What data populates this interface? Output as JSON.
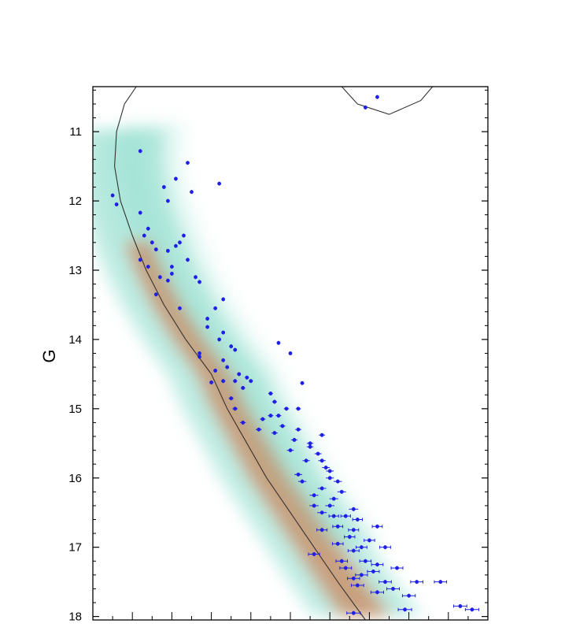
{
  "chart_data": {
    "type": "scatter",
    "title": "",
    "xlabel": "",
    "ylabel": "G",
    "ylim": [
      10.35,
      18.05
    ],
    "xlim": [
      0,
      1
    ],
    "y_inverted": true,
    "y_ticks": [
      11,
      12,
      13,
      14,
      15,
      16,
      17,
      18
    ],
    "grid": false,
    "legend": "none",
    "colors": {
      "points": "#1f1fe6",
      "isochrone": "#333333",
      "density_low": "#6fd3bf",
      "density_high": "#e8561c"
    },
    "series": [
      {
        "type": "line",
        "points": [
          [
            0.11,
            10.35
          ],
          [
            0.08,
            10.6
          ],
          [
            0.06,
            11.0
          ],
          [
            0.055,
            11.5
          ],
          [
            0.07,
            12.0
          ],
          [
            0.1,
            12.5
          ],
          [
            0.135,
            13.0
          ],
          [
            0.18,
            13.5
          ],
          [
            0.235,
            14.0
          ],
          [
            0.3,
            14.5
          ],
          [
            0.34,
            15.0
          ],
          [
            0.39,
            15.5
          ],
          [
            0.44,
            16.0
          ],
          [
            0.5,
            16.5
          ],
          [
            0.56,
            17.0
          ],
          [
            0.62,
            17.5
          ],
          [
            0.69,
            18.05
          ]
        ]
      },
      {
        "type": "line",
        "points": [
          [
            0.63,
            10.35
          ],
          [
            0.67,
            10.6
          ],
          [
            0.75,
            10.75
          ],
          [
            0.83,
            10.55
          ],
          [
            0.86,
            10.35
          ]
        ]
      },
      {
        "type": "scatter",
        "points": [
          [
            0.72,
            10.5
          ],
          [
            0.69,
            10.65
          ],
          [
            0.12,
            11.28
          ],
          [
            0.24,
            11.45
          ],
          [
            0.18,
            11.8
          ],
          [
            0.21,
            11.68
          ],
          [
            0.32,
            11.75
          ],
          [
            0.25,
            11.87
          ],
          [
            0.05,
            11.92
          ],
          [
            0.06,
            12.05
          ],
          [
            0.19,
            12.0
          ],
          [
            0.12,
            12.17
          ],
          [
            0.14,
            12.4
          ],
          [
            0.13,
            12.5
          ],
          [
            0.15,
            12.6
          ],
          [
            0.23,
            12.5
          ],
          [
            0.16,
            12.7
          ],
          [
            0.19,
            12.72
          ],
          [
            0.21,
            12.65
          ],
          [
            0.22,
            12.6
          ],
          [
            0.24,
            12.85
          ],
          [
            0.12,
            12.85
          ],
          [
            0.14,
            12.95
          ],
          [
            0.2,
            12.95
          ],
          [
            0.2,
            13.05
          ],
          [
            0.26,
            13.1
          ],
          [
            0.17,
            13.1
          ],
          [
            0.19,
            13.15
          ],
          [
            0.27,
            13.17
          ],
          [
            0.16,
            13.35
          ],
          [
            0.33,
            13.42
          ],
          [
            0.22,
            13.55
          ],
          [
            0.31,
            13.55
          ],
          [
            0.29,
            13.7
          ],
          [
            0.29,
            13.82
          ],
          [
            0.33,
            13.9
          ],
          [
            0.32,
            14.0
          ],
          [
            0.35,
            14.1
          ],
          [
            0.36,
            14.15
          ],
          [
            0.27,
            14.2
          ],
          [
            0.47,
            14.05
          ],
          [
            0.5,
            14.2
          ],
          [
            0.27,
            14.25
          ],
          [
            0.33,
            14.3
          ],
          [
            0.34,
            14.4
          ],
          [
            0.31,
            14.45
          ],
          [
            0.37,
            14.5
          ],
          [
            0.39,
            14.55
          ],
          [
            0.33,
            14.6
          ],
          [
            0.36,
            14.6
          ],
          [
            0.4,
            14.6
          ],
          [
            0.53,
            14.63
          ],
          [
            0.3,
            14.62
          ],
          [
            0.38,
            14.7
          ],
          [
            0.45,
            14.78
          ],
          [
            0.35,
            14.85
          ],
          [
            0.46,
            14.9
          ],
          [
            0.49,
            15.0
          ],
          [
            0.52,
            15.0
          ],
          [
            0.36,
            15.0
          ],
          [
            0.45,
            15.1
          ],
          [
            0.47,
            15.1
          ],
          [
            0.43,
            15.15
          ],
          [
            0.38,
            15.2
          ],
          [
            0.48,
            15.25
          ],
          [
            0.42,
            15.3
          ],
          [
            0.46,
            15.35
          ],
          [
            0.52,
            15.3
          ],
          [
            0.58,
            15.38
          ],
          [
            0.51,
            15.45
          ],
          [
            0.55,
            15.5
          ],
          [
            0.5,
            15.6
          ],
          [
            0.55,
            15.55
          ],
          [
            0.57,
            15.65
          ],
          [
            0.54,
            15.75
          ],
          [
            0.58,
            15.75
          ],
          [
            0.59,
            15.85
          ],
          [
            0.6,
            15.9
          ],
          [
            0.52,
            15.95
          ],
          [
            0.53,
            16.05
          ],
          [
            0.6,
            16.0
          ],
          [
            0.62,
            16.05
          ],
          [
            0.58,
            16.15
          ],
          [
            0.63,
            16.2
          ],
          [
            0.56,
            16.25
          ],
          [
            0.61,
            16.3
          ],
          [
            0.6,
            16.4
          ],
          [
            0.56,
            16.4
          ],
          [
            0.66,
            16.45
          ],
          [
            0.58,
            16.5
          ],
          [
            0.61,
            16.55
          ],
          [
            0.64,
            16.55
          ],
          [
            0.67,
            16.6
          ],
          [
            0.62,
            16.7
          ],
          [
            0.66,
            16.75
          ],
          [
            0.72,
            16.7
          ],
          [
            0.58,
            16.75
          ],
          [
            0.65,
            16.85
          ],
          [
            0.7,
            16.9
          ],
          [
            0.62,
            16.95
          ],
          [
            0.68,
            17.0
          ],
          [
            0.74,
            17.0
          ],
          [
            0.66,
            17.05
          ],
          [
            0.56,
            17.1
          ],
          [
            0.63,
            17.2
          ],
          [
            0.69,
            17.2
          ],
          [
            0.72,
            17.25
          ],
          [
            0.64,
            17.3
          ],
          [
            0.68,
            17.4
          ],
          [
            0.71,
            17.35
          ],
          [
            0.77,
            17.3
          ],
          [
            0.66,
            17.45
          ],
          [
            0.67,
            17.55
          ],
          [
            0.74,
            17.5
          ],
          [
            0.76,
            17.6
          ],
          [
            0.82,
            17.5
          ],
          [
            0.72,
            17.65
          ],
          [
            0.8,
            17.7
          ],
          [
            0.79,
            17.9
          ],
          [
            0.88,
            17.5
          ],
          [
            0.93,
            17.85
          ],
          [
            0.96,
            17.9
          ],
          [
            0.66,
            17.95
          ]
        ]
      }
    ]
  }
}
